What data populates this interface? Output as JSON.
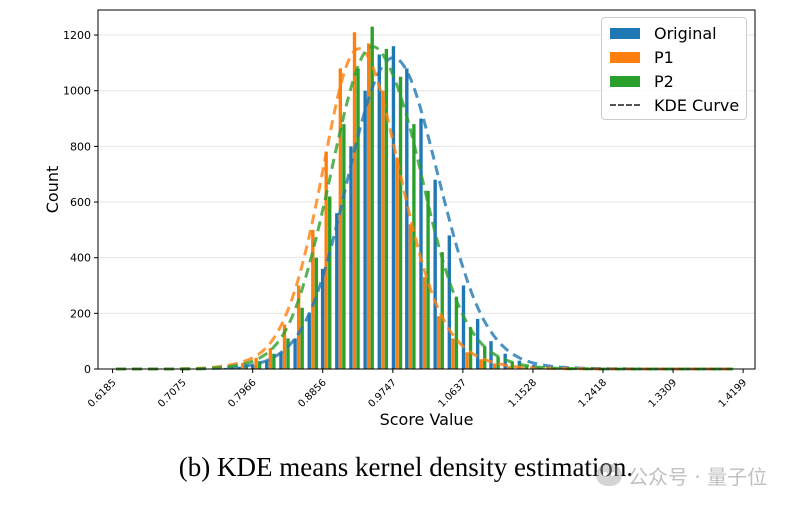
{
  "caption": "(b) KDE means kernel density estimation.",
  "watermark": "公众号 · 量子位",
  "colors": {
    "original": "#1f77b4",
    "p1": "#ff7f0e",
    "p2": "#2ca02c",
    "kde": "#555555"
  },
  "chart_data": {
    "type": "bar",
    "xlabel": "Score Value",
    "ylabel": "Count",
    "ylim": [
      0,
      1290
    ],
    "xlim": [
      0.6,
      1.435
    ],
    "grid": "horizontal",
    "legend_position": "top-right",
    "x_tick_labels": [
      "0.6185",
      "0.7075",
      "0.7966",
      "0.8856",
      "0.9747",
      "1.0637",
      "1.1528",
      "1.2418",
      "1.3309",
      "1.4199"
    ],
    "x_ticks": [
      0.6185,
      0.7075,
      0.7966,
      0.8856,
      0.9747,
      1.0637,
      1.1528,
      1.2418,
      1.3309,
      1.4199
    ],
    "y_ticks": [
      0,
      200,
      400,
      600,
      800,
      1000,
      1200
    ],
    "bin_centers": [
      0.623,
      0.641,
      0.659,
      0.677,
      0.694,
      0.712,
      0.73,
      0.748,
      0.766,
      0.784,
      0.801,
      0.819,
      0.837,
      0.855,
      0.873,
      0.89,
      0.908,
      0.926,
      0.944,
      0.962,
      0.98,
      0.997,
      1.015,
      1.033,
      1.051,
      1.069,
      1.087,
      1.104,
      1.122,
      1.14,
      1.158,
      1.176,
      1.193,
      1.211,
      1.229,
      1.247,
      1.265,
      1.283,
      1.3,
      1.318,
      1.336,
      1.354,
      1.372,
      1.39,
      1.407
    ],
    "series": [
      {
        "name": "Original",
        "values": [
          0,
          0,
          0,
          0,
          0,
          0,
          1,
          2,
          4,
          8,
          15,
          30,
          60,
          110,
          200,
          360,
          560,
          800,
          1000,
          1130,
          1160,
          1080,
          900,
          680,
          480,
          300,
          180,
          100,
          55,
          30,
          15,
          9,
          5,
          3,
          2,
          1,
          1,
          0,
          0,
          0,
          0,
          0,
          0,
          0,
          0
        ]
      },
      {
        "name": "P1",
        "values": [
          0,
          0,
          0,
          0,
          0,
          0,
          2,
          5,
          12,
          22,
          40,
          75,
          160,
          300,
          500,
          780,
          1080,
          1210,
          1170,
          1000,
          760,
          520,
          330,
          190,
          110,
          60,
          35,
          20,
          10,
          5,
          3,
          2,
          1,
          1,
          0,
          0,
          0,
          0,
          0,
          0,
          0,
          0,
          0,
          0,
          0
        ]
      },
      {
        "name": "P2",
        "values": [
          0,
          0,
          0,
          0,
          0,
          0,
          1,
          3,
          8,
          14,
          28,
          55,
          110,
          220,
          400,
          620,
          880,
          1080,
          1230,
          1150,
          1050,
          880,
          640,
          420,
          260,
          150,
          80,
          45,
          25,
          12,
          6,
          3,
          2,
          1,
          0,
          0,
          0,
          0,
          0,
          0,
          0,
          0,
          0,
          0,
          0
        ]
      }
    ],
    "legend": [
      "Original",
      "P1",
      "P2",
      "KDE Curve"
    ]
  }
}
